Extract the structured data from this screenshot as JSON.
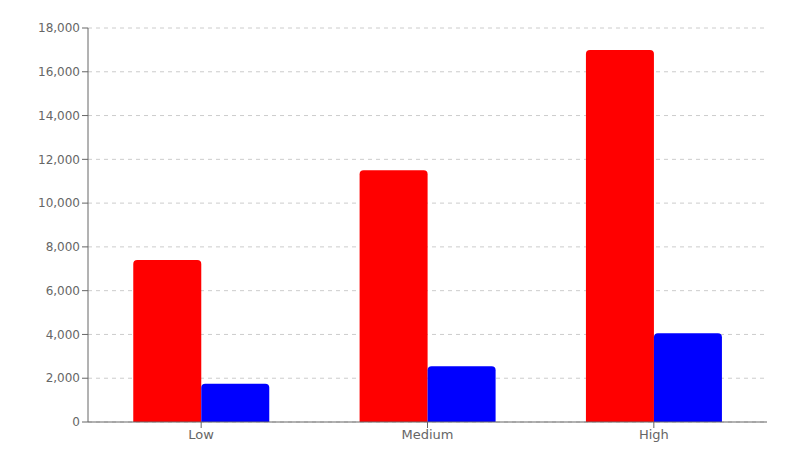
{
  "chart_data": {
    "type": "bar",
    "categories": [
      "Low",
      "Medium",
      "High"
    ],
    "series": [
      {
        "color": "#ff0000",
        "values": [
          7400,
          11500,
          17000
        ]
      },
      {
        "color": "#0000ff",
        "values": [
          1750,
          2550,
          4050
        ]
      }
    ],
    "ylim": [
      0,
      18000
    ],
    "yticks": [
      0,
      {
        "value": 2000,
        "label": "2,000"
      },
      {
        "value": 4000,
        "label": "4,000"
      },
      {
        "value": 6000,
        "label": "6,000"
      },
      {
        "value": 8000,
        "label": "8,000"
      },
      {
        "value": 10000,
        "label": "10,000"
      },
      {
        "value": 12000,
        "label": "12,000"
      },
      {
        "value": 14000,
        "label": "14,000"
      },
      {
        "value": 16000,
        "label": "16,000"
      },
      {
        "value": 18000,
        "label": "18,000"
      }
    ],
    "grid": true
  }
}
